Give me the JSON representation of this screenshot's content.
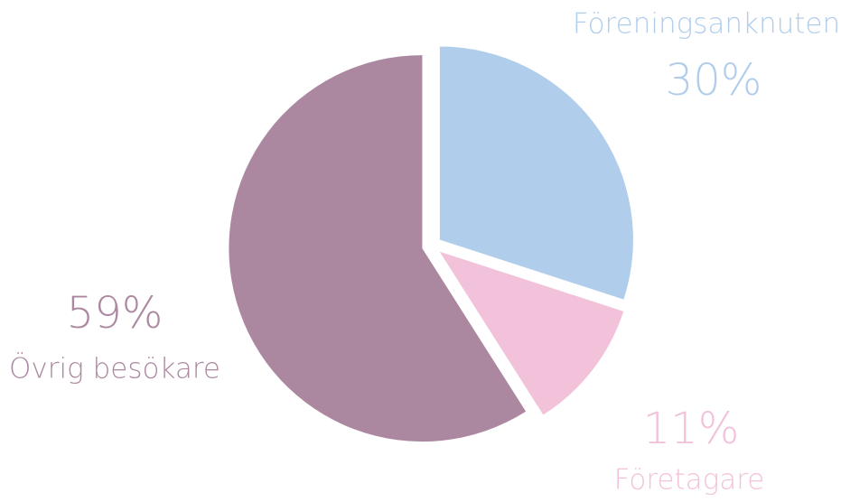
{
  "chart_data": {
    "type": "pie",
    "categories": [
      "Föreningsanknuten",
      "Företagare",
      "Övrig besökare"
    ],
    "values": [
      30,
      11,
      59
    ],
    "value_labels": [
      "30%",
      "11%",
      "59%"
    ],
    "colors": [
      "#b0cdeb",
      "#f2c1da",
      "#ac88a0"
    ]
  }
}
